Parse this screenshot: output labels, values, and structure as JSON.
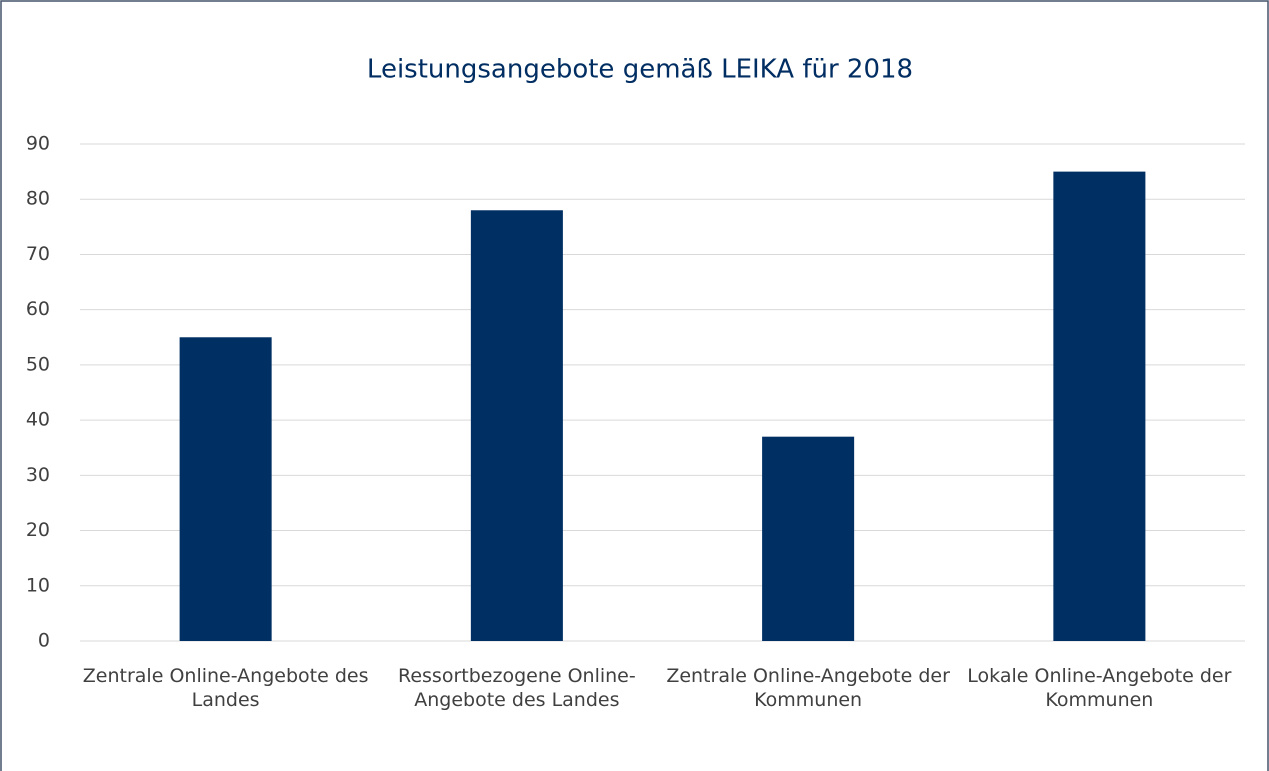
{
  "chart_data": {
    "type": "bar",
    "title": "Leistungsangebote gemäß LEIKA für 2018",
    "categories": [
      "Zentrale Online-Angebote des Landes",
      "Ressortbezogene Online-Angebote des Landes",
      "Zentrale Online-Angebote der Kommunen",
      "Lokale Online-Angebote der Kommunen"
    ],
    "values": [
      55,
      78,
      37,
      85
    ],
    "color": "#002f63",
    "ylim": [
      0,
      90
    ],
    "yticks": [
      0,
      10,
      20,
      30,
      40,
      50,
      60,
      70,
      80,
      90
    ],
    "grid": true
  }
}
